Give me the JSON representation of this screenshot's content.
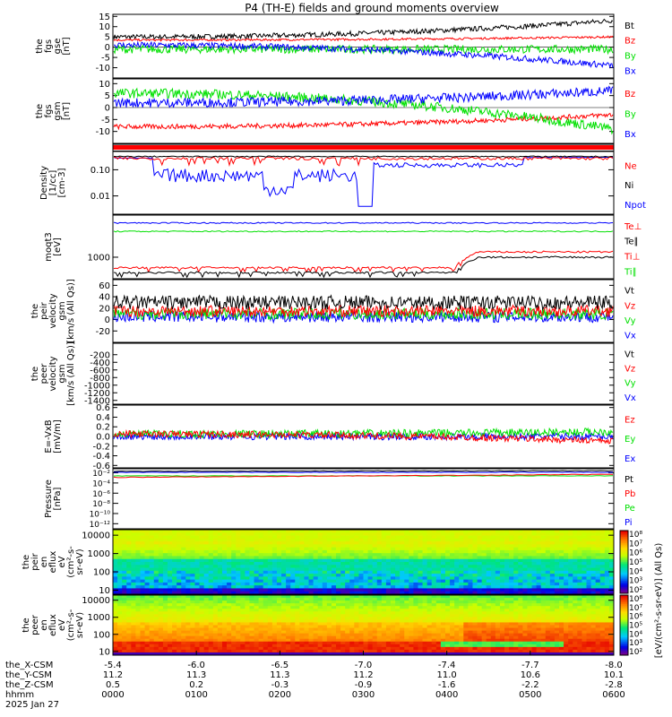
{
  "title": "P4 (TH-E) fields and ground moments overview",
  "colors": {
    "black": "#000000",
    "red": "#ff0000",
    "green": "#00e000",
    "blue": "#0000ff"
  },
  "chart_data": [
    {
      "type": "line",
      "ylabel": [
        "the",
        "fgs",
        "gse",
        "[nT]"
      ],
      "ylim": [
        -15,
        16
      ],
      "yticks": [
        "15",
        "10",
        "5",
        "0",
        "-5",
        "-10"
      ],
      "ytick_values": [
        15,
        10,
        5,
        0,
        -5,
        -10
      ],
      "series": [
        {
          "name": "Bt",
          "color": "#000000",
          "start": 5,
          "end": 13,
          "noise": 1.2
        },
        {
          "name": "Bz",
          "color": "#ff0000",
          "start": 3.5,
          "end": 5,
          "noise": 0.5
        },
        {
          "name": "By",
          "color": "#00e000",
          "start": -1,
          "end": -1,
          "noise": 2.0
        },
        {
          "name": "Bx",
          "color": "#0000ff",
          "start": 1,
          "end": -9,
          "noise": 1.5
        }
      ]
    },
    {
      "type": "line",
      "ylabel": [
        "the",
        "fgs",
        "gsm",
        "[nT]"
      ],
      "ylim": [
        -15,
        12
      ],
      "yticks": [
        "10",
        "5",
        "0",
        "-5",
        "-10"
      ],
      "ytick_values": [
        10,
        5,
        0,
        -5,
        -10
      ],
      "series": [
        {
          "name": "Bz",
          "color": "#ff0000",
          "start": -8,
          "end": -3,
          "noise": 1.0
        },
        {
          "name": "By",
          "color": "#00e000",
          "start": 6,
          "end": -9,
          "noise": 2.0
        },
        {
          "name": "Bx",
          "color": "#0000ff",
          "start": 2,
          "end": 7,
          "noise": 2.0
        }
      ]
    },
    {
      "type": "line",
      "log": true,
      "ylabel": [
        "Density",
        "[1/cc]",
        "[cm-3]"
      ],
      "ylim": [
        0.002,
        0.5
      ],
      "yticks": [
        "0.10",
        "0.01"
      ],
      "ytick_values": [
        0.1,
        0.01
      ],
      "series": [
        {
          "name": "Ne",
          "color": "#ff0000"
        },
        {
          "name": "Ni",
          "color": "#000000"
        },
        {
          "name": "Npot",
          "color": "#0000ff"
        }
      ]
    },
    {
      "type": "line",
      "log": true,
      "ylabel": [
        "moqt3",
        "[eV]"
      ],
      "ylim": [
        400,
        6000
      ],
      "yticks": [
        "1000"
      ],
      "ytick_values": [
        1000
      ],
      "series": [
        {
          "name": "Te⊥",
          "color": "#ff0000"
        },
        {
          "name": "Te∥",
          "color": "#000000"
        },
        {
          "name": "Ti⊥",
          "color": "#ff0000"
        },
        {
          "name": "Ti∥",
          "color": "#00e000"
        }
      ]
    },
    {
      "type": "line",
      "ylabel": [
        "the",
        "peir",
        "velocity",
        "gsm",
        "[km/s (All Qs)]"
      ],
      "ylim": [
        -40,
        70
      ],
      "yticks": [
        "60",
        "40",
        "20",
        "0",
        "-20"
      ],
      "ytick_values": [
        60,
        40,
        20,
        0,
        -20
      ],
      "series": [
        {
          "name": "Vt",
          "color": "#000000",
          "start": 30,
          "end": 30,
          "noise": 12
        },
        {
          "name": "Vz",
          "color": "#ff0000",
          "start": 15,
          "end": 15,
          "noise": 10
        },
        {
          "name": "Vy",
          "color": "#00e000",
          "start": 10,
          "end": 10,
          "noise": 10
        },
        {
          "name": "Vx",
          "color": "#0000ff",
          "start": 5,
          "end": 5,
          "noise": 10
        }
      ]
    },
    {
      "type": "line",
      "ylabel": [
        "the",
        "peer",
        "velocity",
        "gsm",
        "[km/s (All Qs)]"
      ],
      "ylim": [
        -1500,
        100
      ],
      "yticks": [
        "-200",
        "-400",
        "-600",
        "-800",
        "-1000",
        "-1200",
        "-1400"
      ],
      "ytick_values": [
        -200,
        -400,
        -600,
        -800,
        -1000,
        -1200,
        -1400
      ],
      "series": [
        {
          "name": "Vt",
          "color": "#000000"
        },
        {
          "name": "Vz",
          "color": "#ff0000"
        },
        {
          "name": "Vy",
          "color": "#00e000"
        },
        {
          "name": "Vx",
          "color": "#0000ff"
        }
      ]
    },
    {
      "type": "line",
      "ylabel": [
        "E=-VxB",
        "[mV/m]"
      ],
      "ylim": [
        -0.65,
        0.65
      ],
      "yticks": [
        "0.6",
        "0.4",
        "0.2",
        "0.0",
        "-0.2",
        "-0.4",
        "-0.6"
      ],
      "ytick_values": [
        0.6,
        0.4,
        0.2,
        0.0,
        -0.2,
        -0.4,
        -0.6
      ],
      "series": [
        {
          "name": "Ez",
          "color": "#ff0000",
          "start": 0.05,
          "end": -0.1,
          "noise": 0.07
        },
        {
          "name": "Ey",
          "color": "#00e000",
          "start": 0.05,
          "end": 0.1,
          "noise": 0.08
        },
        {
          "name": "Ex",
          "color": "#0000ff",
          "start": 0.0,
          "end": 0.0,
          "noise": 0.07
        }
      ]
    },
    {
      "type": "line",
      "log": true,
      "ylabel": [
        "Pressure",
        "[nPa]"
      ],
      "ylim": [
        1e-13,
        0.1
      ],
      "yticks": [
        "10⁻²",
        "10⁻⁴",
        "10⁻⁶",
        "10⁻⁸",
        "10⁻¹⁰",
        "10⁻¹²"
      ],
      "ytick_values": [
        -2,
        -4,
        -6,
        -8,
        -10,
        -12
      ],
      "series": [
        {
          "name": "Pt",
          "color": "#000000"
        },
        {
          "name": "Pb",
          "color": "#ff0000"
        },
        {
          "name": "Pe",
          "color": "#00e000"
        },
        {
          "name": "Pi",
          "color": "#0000ff"
        }
      ]
    },
    {
      "type": "heatmap",
      "ylabel": [
        "the",
        "peir",
        "en",
        "eflux",
        "eV",
        "(cm²-s-",
        "sr-eV)"
      ],
      "yticks": [
        "10000",
        "1000",
        "100",
        "10"
      ],
      "ytick_values": [
        10000,
        1000,
        100,
        10
      ]
    },
    {
      "type": "heatmap",
      "ylabel": [
        "the",
        "peer",
        "en",
        "eflux",
        "eV",
        "(cm²-s-",
        "sr-eV)"
      ],
      "yticks": [
        "10000",
        "1000",
        "100",
        "10"
      ],
      "ytick_values": [
        10000,
        1000,
        100,
        10
      ]
    }
  ],
  "colorbar": {
    "label": "[eV/(cm²-s-sr-eV)] (All Qs)",
    "ticks_top": [
      "10⁸",
      "10⁷",
      "10⁶",
      "10⁵",
      "10⁴",
      "10³",
      "10²"
    ],
    "ticks_bottom": [
      "10⁸",
      "10⁷",
      "10⁶",
      "10⁵",
      "10⁴",
      "10³",
      "10²"
    ]
  },
  "xaxis": {
    "rows": [
      {
        "label": "the_X-CSM",
        "values": [
          "-5.4",
          "-6.0",
          "-6.5",
          "-7.0",
          "-7.4",
          "-7.7",
          "-8.0"
        ]
      },
      {
        "label": "the_Y-CSM",
        "values": [
          "11.2",
          "11.3",
          "11.3",
          "11.2",
          "11.0",
          "10.6",
          "10.1"
        ]
      },
      {
        "label": "the_Z-CSM",
        "values": [
          "0.5",
          "0.2",
          "-0.3",
          "-0.9",
          "-1.6",
          "-2.2",
          "-2.8"
        ]
      },
      {
        "label": "hhmm",
        "values": [
          "0000",
          "0100",
          "0200",
          "0300",
          "0400",
          "0500",
          "0600"
        ]
      }
    ],
    "date": "2025 Jan 27"
  }
}
